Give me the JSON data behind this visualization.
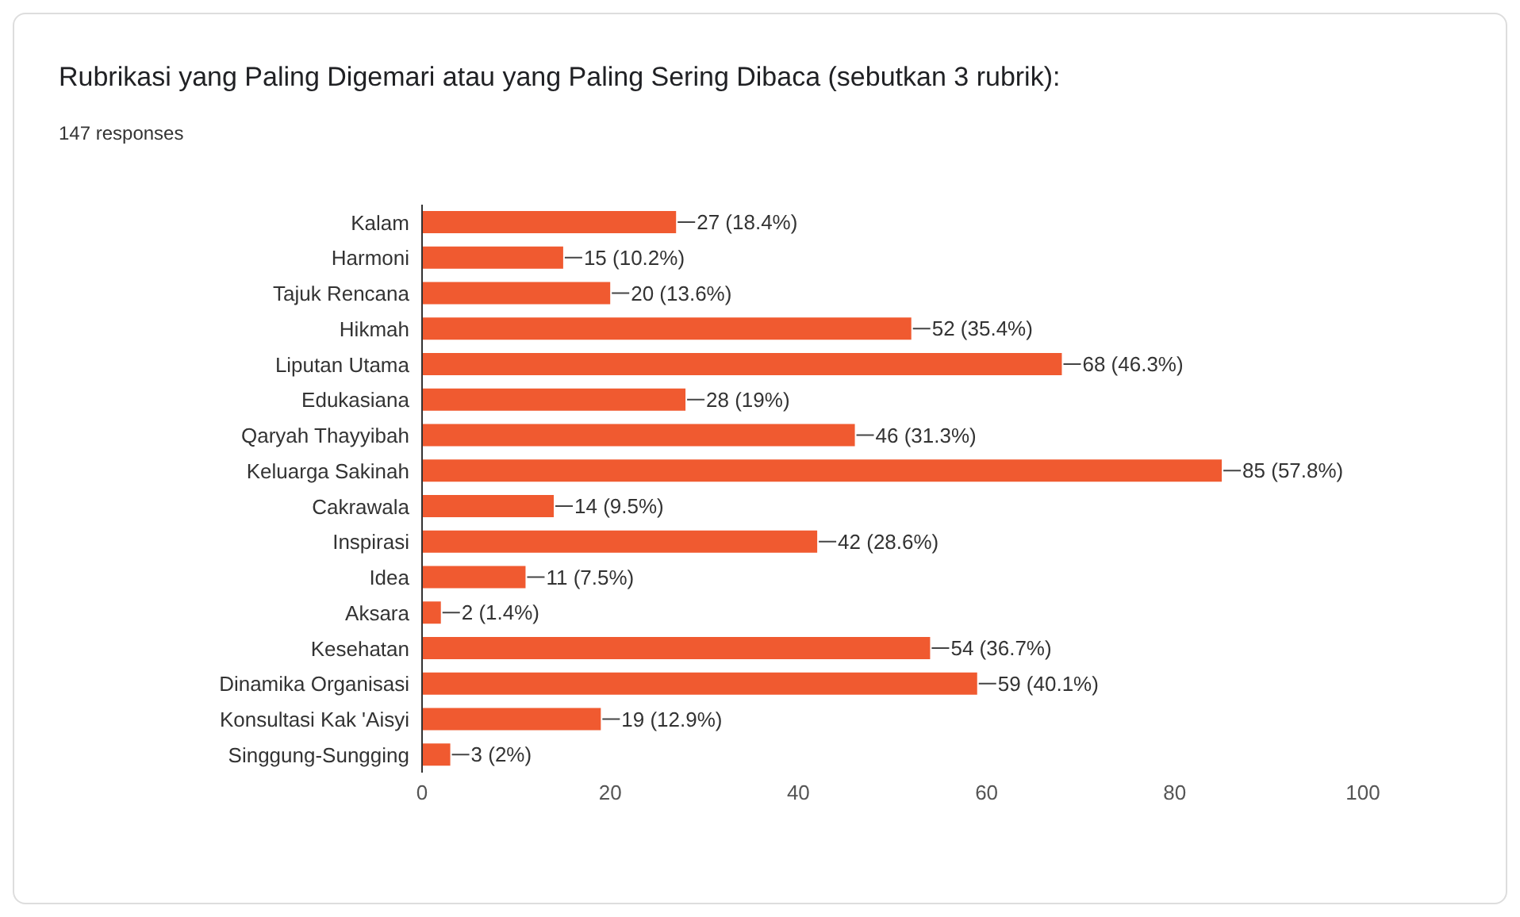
{
  "chart_data": {
    "type": "bar",
    "orientation": "horizontal",
    "title": "Rubrikasi yang Paling Digemari atau yang Paling Sering Dibaca (sebutkan 3 rubrik):",
    "subtitle": "147 responses",
    "categories": [
      "Kalam",
      "Harmoni",
      "Tajuk Rencana",
      "Hikmah",
      "Liputan Utama",
      "Edukasiana",
      "Qaryah Thayyibah",
      "Keluarga Sakinah",
      "Cakrawala",
      "Inspirasi",
      "Idea",
      "Aksara",
      "Kesehatan",
      "Dinamika Organisasi",
      "Konsultasi Kak 'Aisyi",
      "Singgung-Sungging"
    ],
    "values": [
      27,
      15,
      20,
      52,
      68,
      28,
      46,
      85,
      14,
      42,
      11,
      2,
      54,
      59,
      19,
      3
    ],
    "value_labels": [
      "27 (18.4%)",
      "15 (10.2%)",
      "20 (13.6%)",
      "52 (35.4%)",
      "68 (46.3%)",
      "28 (19%)",
      "46 (31.3%)",
      "85 (57.8%)",
      "14 (9.5%)",
      "42 (28.6%)",
      "11 (7.5%)",
      "2 (1.4%)",
      "54 (36.7%)",
      "59 (40.1%)",
      "19 (12.9%)",
      "3 (2%)"
    ],
    "color": "#f05a30",
    "xlim": [
      0,
      100
    ],
    "xticks": [
      0,
      20,
      40,
      60,
      80,
      100
    ]
  }
}
